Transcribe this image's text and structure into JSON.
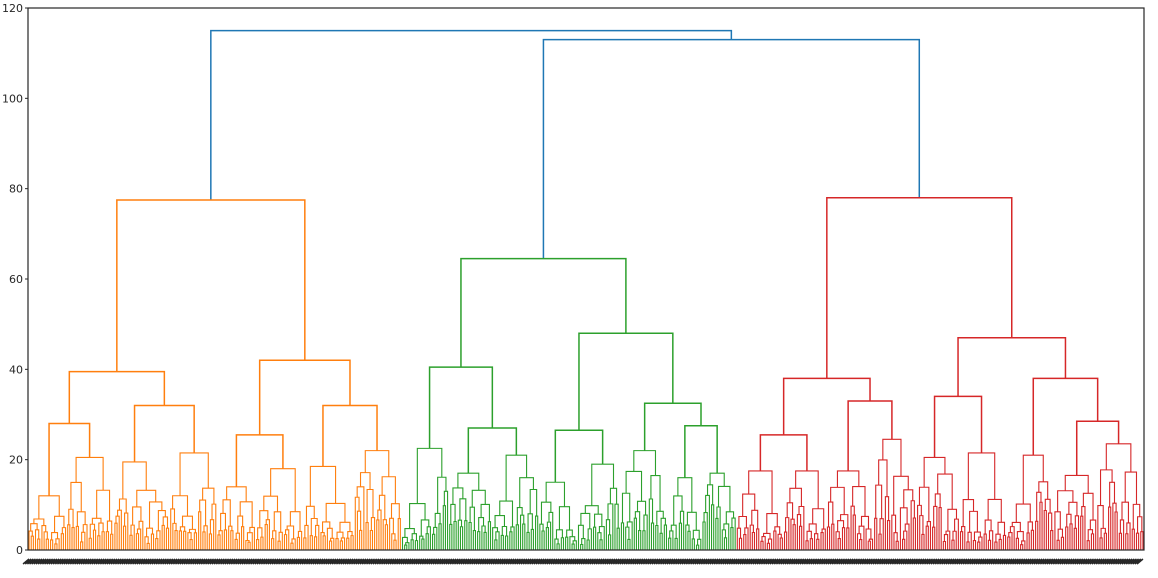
{
  "chart_data": {
    "type": "dendrogram",
    "title": "",
    "xlabel": "",
    "ylabel": "",
    "ylim": [
      0,
      120
    ],
    "y_ticks": [
      "0",
      "20",
      "40",
      "60",
      "80",
      "100",
      "120"
    ],
    "grid": false,
    "colors": {
      "above_threshold": "#1f77b4",
      "cluster_1": "#ff7f0e",
      "cluster_2": "#2ca02c",
      "cluster_3": "#d62728",
      "axis": "#262626"
    },
    "tree": {
      "h": 115,
      "color": "above_threshold",
      "children": [
        {
          "h": 77.5,
          "color": "cluster_1",
          "children": [
            {
              "h": 39.5,
              "color": "cluster_1",
              "children": [
                {
                  "h": 28,
                  "color": "cluster_1",
                  "children": [
                    {
                      "h": 12,
                      "leaves": 18
                    },
                    {
                      "h": 20.5,
                      "leaves": 22
                    }
                  ]
                },
                {
                  "h": 32,
                  "color": "cluster_1",
                  "children": [
                    {
                      "h": 19.5,
                      "leaves": 26
                    },
                    {
                      "h": 21.5,
                      "leaves": 22
                    }
                  ]
                }
              ]
            },
            {
              "h": 42,
              "color": "cluster_1",
              "children": [
                {
                  "h": 25.5,
                  "color": "cluster_1",
                  "children": [
                    {
                      "h": 14,
                      "leaves": 18
                    },
                    {
                      "h": 18,
                      "leaves": 22
                    }
                  ]
                },
                {
                  "h": 32,
                  "color": "cluster_1",
                  "children": [
                    {
                      "h": 18.5,
                      "leaves": 24
                    },
                    {
                      "h": 22,
                      "leaves": 22
                    }
                  ]
                }
              ]
            }
          ]
        },
        {
          "h": 113,
          "color": "above_threshold",
          "children": [
            {
              "h": 64.5,
              "color": "cluster_2",
              "children": [
                {
                  "h": 40.5,
                  "color": "cluster_2",
                  "children": [
                    {
                      "h": 22.5,
                      "leaves": 22
                    },
                    {
                      "h": 27,
                      "color": "cluster_2",
                      "children": [
                        {
                          "h": 17,
                          "leaves": 20
                        },
                        {
                          "h": 21,
                          "leaves": 22
                        }
                      ]
                    }
                  ]
                },
                {
                  "h": 48,
                  "color": "cluster_2",
                  "children": [
                    {
                      "h": 26.5,
                      "color": "cluster_2",
                      "children": [
                        {
                          "h": 15,
                          "leaves": 18
                        },
                        {
                          "h": 19,
                          "leaves": 20
                        }
                      ]
                    },
                    {
                      "h": 32.5,
                      "color": "cluster_2",
                      "children": [
                        {
                          "h": 22,
                          "leaves": 22
                        },
                        {
                          "h": 27.5,
                          "color": "cluster_2",
                          "children": [
                            {
                              "h": 16,
                              "leaves": 16
                            },
                            {
                              "h": 17,
                              "leaves": 16
                            }
                          ]
                        }
                      ]
                    }
                  ]
                }
              ]
            },
            {
              "h": 78,
              "color": "cluster_3",
              "children": [
                {
                  "h": 38,
                  "color": "cluster_3",
                  "children": [
                    {
                      "h": 25.5,
                      "color": "cluster_3",
                      "children": [
                        {
                          "h": 17.5,
                          "leaves": 22
                        },
                        {
                          "h": 17.5,
                          "leaves": 20
                        }
                      ]
                    },
                    {
                      "h": 33,
                      "color": "cluster_3",
                      "children": [
                        {
                          "h": 17.5,
                          "leaves": 22
                        },
                        {
                          "h": 24.5,
                          "leaves": 20
                        }
                      ]
                    }
                  ]
                },
                {
                  "h": 47,
                  "color": "cluster_3",
                  "children": [
                    {
                      "h": 34,
                      "color": "cluster_3",
                      "children": [
                        {
                          "h": 20.5,
                          "leaves": 20
                        },
                        {
                          "h": 21.5,
                          "leaves": 22
                        }
                      ]
                    },
                    {
                      "h": 38,
                      "color": "cluster_3",
                      "children": [
                        {
                          "h": 21,
                          "leaves": 22
                        },
                        {
                          "h": 28.5,
                          "color": "cluster_3",
                          "children": [
                            {
                              "h": 16.5,
                              "leaves": 20
                            },
                            {
                              "h": 23.5,
                              "leaves": 22
                            }
                          ]
                        }
                      ]
                    }
                  ]
                }
              ]
            }
          ]
        }
      ]
    }
  }
}
